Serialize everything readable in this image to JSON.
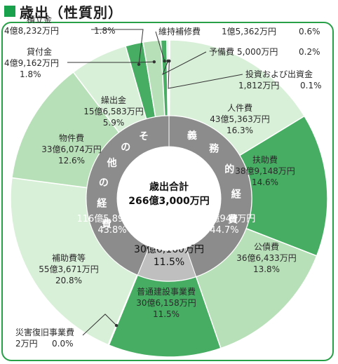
{
  "header": {
    "title": "歳出（性質別）"
  },
  "chart_data": {
    "type": "pie",
    "title": "歳出（性質別）",
    "unit": "万円",
    "total": {
      "label": "歳出合計",
      "value": "266億3,000万円"
    },
    "slices": [
      {
        "name": "人件費",
        "amount": "43億5,363万円",
        "percent": 16.3,
        "color": "#d8efd8",
        "text": "#2b2b2b"
      },
      {
        "name": "扶助費",
        "amount": "38億9,148万円",
        "percent": 14.6,
        "color": "#46ad63",
        "text": "#2b2b2b"
      },
      {
        "name": "公債費",
        "amount": "36億6,433万円",
        "percent": 13.8,
        "color": "#b8e0b8",
        "text": "#2b2b2b"
      },
      {
        "name": "普通建設事業費",
        "amount": "30億6,158万円",
        "percent": 11.5,
        "color": "#46ad63",
        "text": "#2b2b2b"
      },
      {
        "name": "災害復旧事業費",
        "amount": "2万円",
        "percent": 0.0,
        "color": "#46ad63",
        "text": "#2b2b2b"
      },
      {
        "name": "補助費等",
        "amount": "55億3,671万円",
        "percent": 20.8,
        "color": "#d8efd8",
        "text": "#2b2b2b"
      },
      {
        "name": "物件費",
        "amount": "33億6,074万円",
        "percent": 12.6,
        "color": "#b8e0b8",
        "text": "#2b2b2b"
      },
      {
        "name": "繰出金",
        "amount": "15億6,583万円",
        "percent": 5.9,
        "color": "#d8efd8",
        "text": "#2b2b2b"
      },
      {
        "name": "積立金",
        "amount": "4億8,232万円",
        "percent": 1.8,
        "color": "#46ad63",
        "text": "#2b2b2b"
      },
      {
        "name": "貸付金",
        "amount": "4億9,162万円",
        "percent": 1.8,
        "color": "#b8e0b8",
        "text": "#2b2b2b"
      },
      {
        "name": "維持補修費",
        "amount": "1億5,362万円",
        "percent": 0.6,
        "color": "#46ad63",
        "text": "#2b2b2b"
      },
      {
        "name": "予備費",
        "amount": "5,000万円",
        "percent": 0.2,
        "color": "#d8efd8",
        "text": "#2b2b2b"
      },
      {
        "name": "投資および出資金",
        "amount": "1,812万円",
        "percent": 0.1,
        "color": "#46ad63",
        "text": "#2b2b2b"
      }
    ],
    "groups": [
      {
        "name": "義務的経費",
        "amount": "119億944万円",
        "percent": 44.7,
        "color": "#8c8c8c"
      },
      {
        "name": "投資的経費",
        "amount": "30億6,160万円",
        "percent": 11.5,
        "color": "#bfbfbf"
      },
      {
        "name": "その他の経費",
        "amount": "116億5,896万円",
        "percent": 43.8,
        "color": "#8c8c8c"
      }
    ]
  }
}
